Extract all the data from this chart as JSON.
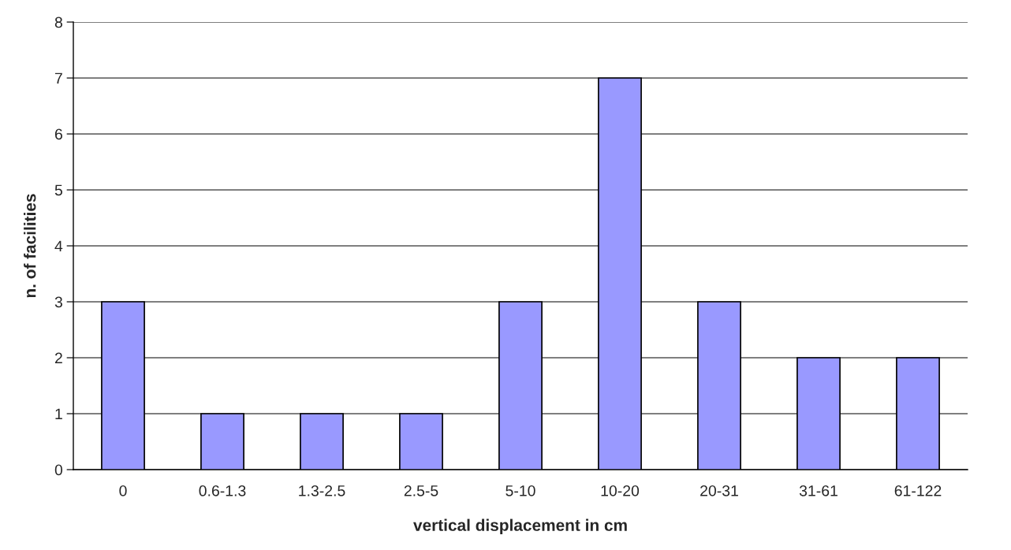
{
  "chart_data": {
    "type": "bar",
    "xlabel": "vertical displacement in cm",
    "ylabel": "n. of facilities",
    "categories": [
      "0",
      "0.6-1.3",
      "1.3-2.5",
      "2.5-5",
      "5-10",
      "10-20",
      "20-31",
      "31-61",
      "61-122"
    ],
    "values": [
      3,
      1,
      1,
      1,
      3,
      7,
      3,
      2,
      2
    ],
    "color": "#9999ff",
    "ylim": [
      0,
      8
    ],
    "yticks": [
      0,
      1,
      2,
      3,
      4,
      5,
      6,
      7,
      8
    ],
    "grid": "y",
    "legend": false
  }
}
